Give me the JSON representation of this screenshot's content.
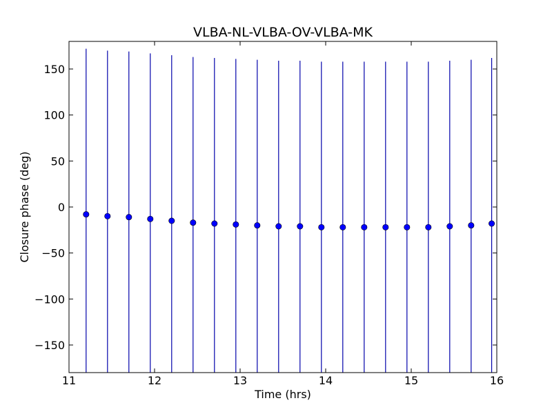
{
  "chart_data": {
    "type": "scatter",
    "title": "VLBA-NL-VLBA-OV-VLBA-MK",
    "xlabel": "Time (hrs)",
    "ylabel": "Closure phase (deg)",
    "xlim": [
      11,
      16
    ],
    "ylim": [
      -180,
      180
    ],
    "xticks": [
      11,
      12,
      13,
      14,
      15,
      16
    ],
    "xtick_labels": [
      "11",
      "12",
      "13",
      "14",
      "15",
      "16"
    ],
    "yticks": [
      150,
      100,
      50,
      0,
      -50,
      -100,
      -150
    ],
    "ytick_labels": [
      "150",
      "100",
      "50",
      "0",
      "−50",
      "−100",
      "−150"
    ],
    "grid": false,
    "marker_color": "#0000ff",
    "errorbar_color": "#0000aa",
    "series": [
      {
        "x": [
          11.2,
          11.45,
          11.7,
          11.95,
          12.2,
          12.45,
          12.7,
          12.95,
          13.2,
          13.45,
          13.7,
          13.95,
          14.2,
          14.45,
          14.7,
          14.95,
          15.2,
          15.45,
          15.7,
          15.94
        ],
        "y": [
          -8,
          -10,
          -11,
          -13,
          -15,
          -17,
          -18,
          -19,
          -20,
          -21,
          -21,
          -22,
          -22,
          -22,
          -22,
          -22,
          -22,
          -21,
          -20,
          -18
        ],
        "yerr": [
          180,
          180,
          180,
          180,
          180,
          180,
          180,
          180,
          180,
          180,
          180,
          180,
          180,
          180,
          180,
          180,
          180,
          180,
          180,
          180
        ]
      }
    ]
  }
}
